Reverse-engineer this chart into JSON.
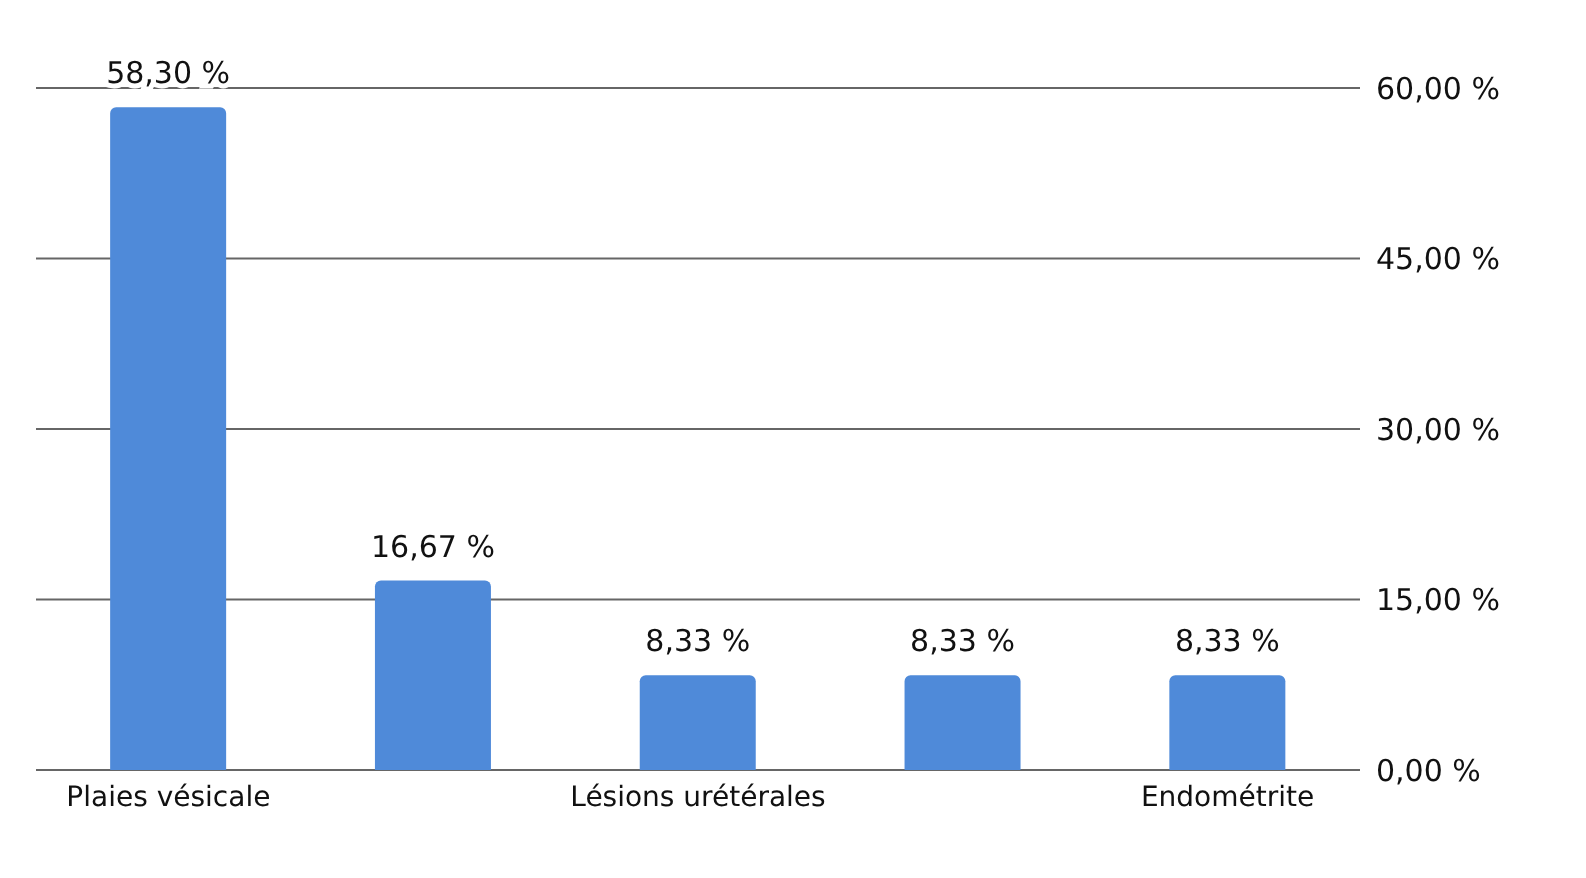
{
  "chart_data": {
    "type": "bar",
    "categories": [
      "Plaies vésicale",
      null,
      "Lésions urétérales",
      null,
      "Endométrite"
    ],
    "values": [
      58.3,
      16.67,
      8.33,
      8.33,
      8.33
    ],
    "value_labels": [
      "58,30 %",
      "16,67 %",
      "8,33 %",
      "8,33 %",
      "8,33 %"
    ],
    "color": "#4f8ad9",
    "ylim": [
      0,
      60
    ],
    "yticks": [
      {
        "value": 0,
        "label": "0,00 %"
      },
      {
        "value": 15,
        "label": "15,00 %"
      },
      {
        "value": 30,
        "label": "30,00 %"
      },
      {
        "value": 45,
        "label": "45,00 %"
      },
      {
        "value": 60,
        "label": "60,00 %"
      }
    ],
    "grid": "y"
  }
}
